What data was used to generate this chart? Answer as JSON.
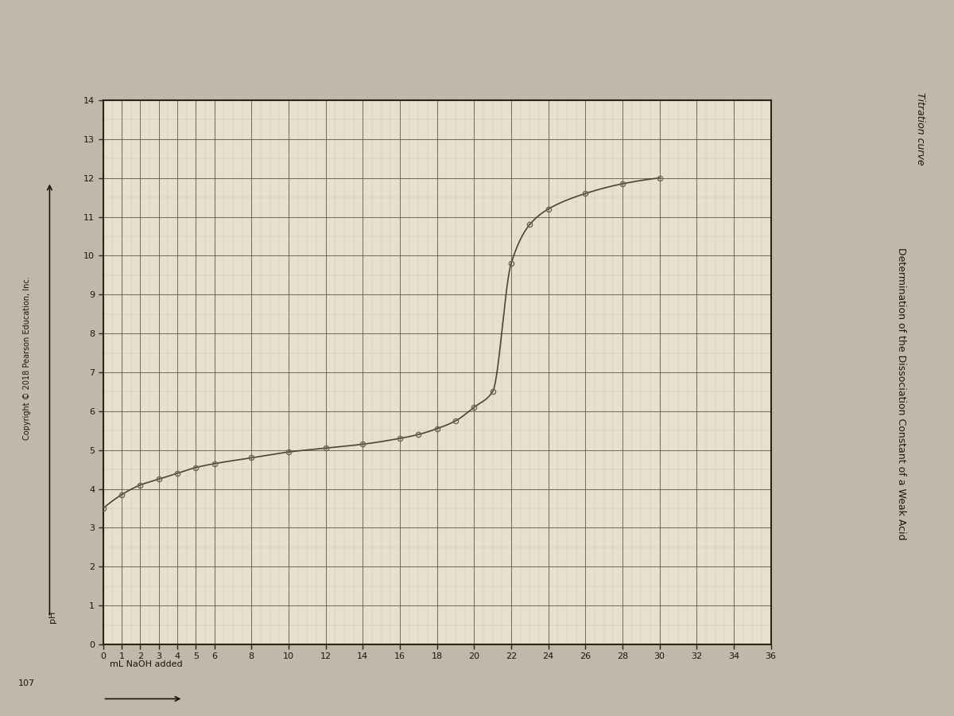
{
  "title": "Determination of the Dissociation Constant of a Weak Acid",
  "subtitle": "Titration curve",
  "xlabel": "mL NaOH added",
  "ylabel": "pH",
  "copyright": "Copyright © 2018 Pearson Education, Inc.",
  "page_number": "107",
  "xlim": [
    0,
    36
  ],
  "ylim": [
    0,
    14
  ],
  "xticks_labeled": [
    0,
    1,
    2,
    3,
    4,
    5,
    6,
    8,
    10,
    12,
    14,
    16,
    18,
    20,
    22,
    24,
    26,
    28,
    30,
    32,
    34,
    36
  ],
  "yticks_labeled": [
    0,
    1,
    2,
    3,
    4,
    5,
    6,
    7,
    8,
    9,
    10,
    11,
    12,
    13,
    14
  ],
  "data_x": [
    0,
    1,
    2,
    3,
    4,
    5,
    6,
    8,
    10,
    12,
    14,
    16,
    17,
    18,
    19,
    20,
    21,
    22,
    23,
    24,
    26,
    28,
    30
  ],
  "data_y": [
    3.5,
    3.85,
    4.1,
    4.25,
    4.4,
    4.55,
    4.65,
    4.8,
    4.95,
    5.05,
    5.15,
    5.3,
    5.4,
    5.55,
    5.75,
    6.1,
    6.5,
    9.8,
    10.8,
    11.2,
    11.6,
    11.85,
    12.0
  ],
  "line_color": "#4a4535",
  "marker_color": "#6a6555",
  "plot_bg_color": "#e8e0cc",
  "outer_bg_color": "#c0b8a8",
  "grid_major_color": "#5a5245",
  "grid_minor_color": "#9a9285",
  "spine_color": "#2a2515",
  "text_color": "#1a1510",
  "title_fontsize": 9,
  "axis_label_fontsize": 8,
  "tick_fontsize": 8,
  "copyright_fontsize": 7
}
